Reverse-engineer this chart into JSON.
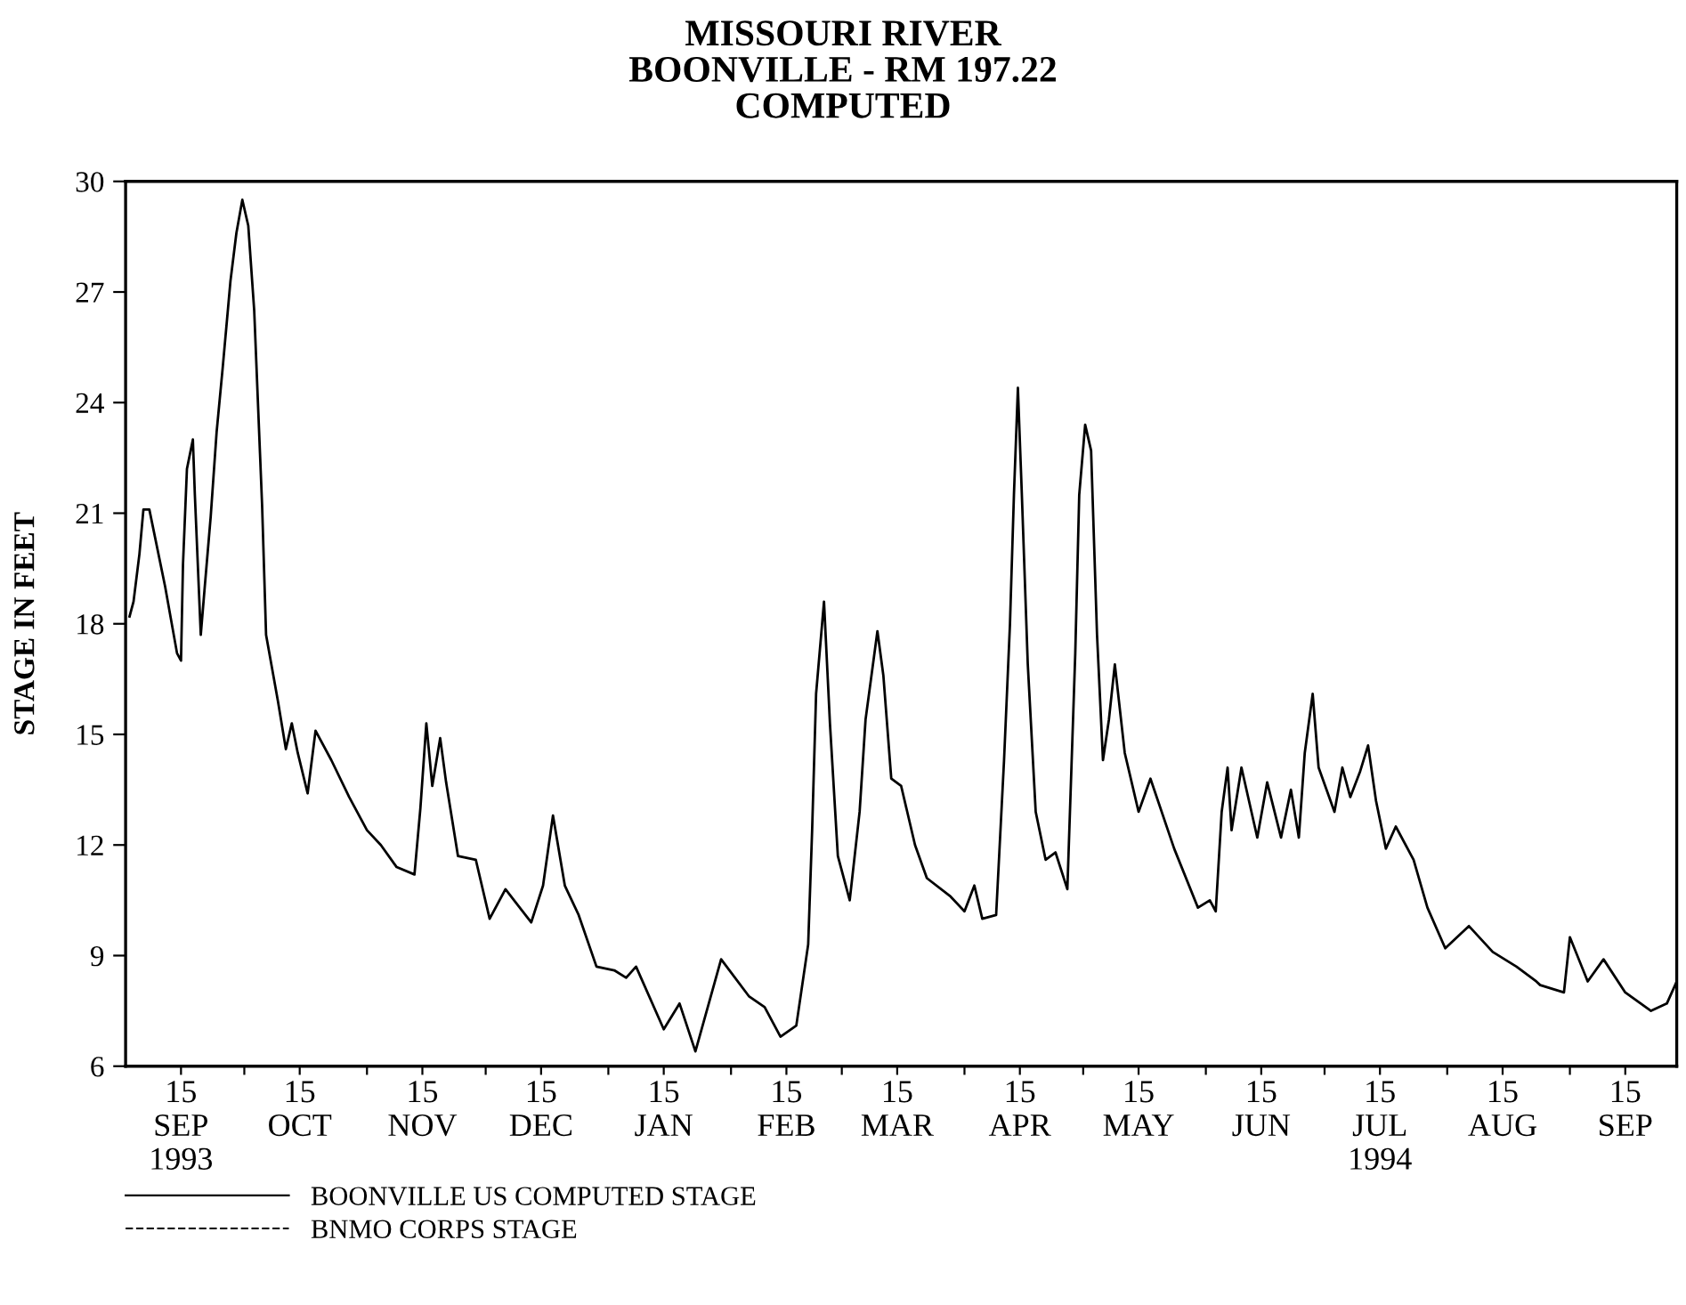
{
  "chart_data": {
    "type": "line",
    "title": "MISSOURI RIVER\nBOONVILLE - RM 197.22\nCOMPUTED",
    "ylabel": "STAGE IN FEET",
    "x": [
      "1993-09-02",
      "1993-09-03",
      "1993-09-04T12:00",
      "1993-09-05T12:00",
      "1993-09-07",
      "1993-09-11",
      "1993-09-14",
      "1993-09-15",
      "1993-09-15T12:00",
      "1993-09-16T12:00",
      "1993-09-18",
      "1993-09-18T12:00",
      "1993-09-20",
      "1993-09-21",
      "1993-09-22T12:00",
      "1993-09-24",
      "1993-09-25T12:00",
      "1993-09-27T12:00",
      "1993-09-29",
      "1993-09-30T12:00",
      "1993-10-02",
      "1993-10-03T12:00",
      "1993-10-05T12:00",
      "1993-10-06T12:00",
      "1993-10-09T12:00",
      "1993-10-11T12:00",
      "1993-10-13",
      "1993-10-14T12:00",
      "1993-10-17",
      "1993-10-19",
      "1993-10-23",
      "1993-10-27T12:00",
      "1993-11-01",
      "1993-11-04T12:00",
      "1993-11-08T12:00",
      "1993-11-13",
      "1993-11-14T12:00",
      "1993-11-16",
      "1993-11-17T12:00",
      "1993-11-19T12:00",
      "1993-11-21",
      "1993-11-24",
      "1993-11-28T12:00",
      "1993-12-02",
      "1993-12-06",
      "1993-12-12T12:00",
      "1993-12-15T12:00",
      "1993-12-18",
      "1993-12-21",
      "1993-12-24T12:00",
      "1993-12-29",
      "1994-01-02T12:00",
      "1994-01-05T12:00",
      "1994-01-08",
      "1994-01-15",
      "1994-01-19",
      "1994-01-23",
      "1994-01-29T12:00",
      "1994-02-05T12:00",
      "1994-02-09T12:00",
      "1994-02-13T12:00",
      "1994-02-17T12:00",
      "1994-02-20T12:00",
      "1994-02-21T12:00",
      "1994-02-22T12:00",
      "1994-02-24T12:00",
      "1994-02-26",
      "1994-02-28",
      "1994-03-03",
      "1994-03-05T12:00",
      "1994-03-07",
      "1994-03-10",
      "1994-03-11T12:00",
      "1994-03-13T12:00",
      "1994-03-16",
      "1994-03-19T12:00",
      "1994-03-22T12:00",
      "1994-03-28T12:00",
      "1994-04-01",
      "1994-04-03T12:00",
      "1994-04-05T12:00",
      "1994-04-09",
      "1994-04-11",
      "1994-04-12T12:00",
      "1994-04-13T12:00",
      "1994-04-14T12:00",
      "1994-04-15T12:00",
      "1994-04-17",
      "1994-04-19",
      "1994-04-21T12:00",
      "1994-04-24",
      "1994-04-27",
      "1994-04-29",
      "1994-04-30",
      "1994-05-01T12:00",
      "1994-05-03",
      "1994-05-04T12:00",
      "1994-05-06",
      "1994-05-07T12:00",
      "1994-05-09",
      "1994-05-11T12:00",
      "1994-05-15",
      "1994-05-18",
      "1994-05-24",
      "1994-05-30",
      "1994-06-02",
      "1994-06-03T12:00",
      "1994-06-05",
      "1994-06-06T12:00",
      "1994-06-07T12:00",
      "1994-06-10",
      "1994-06-14",
      "1994-06-16T12:00",
      "1994-06-20",
      "1994-06-22T12:00",
      "1994-06-24T12:00",
      "1994-06-26",
      "1994-06-28",
      "1994-06-29T12:00",
      "1994-07-03T12:00",
      "1994-07-05T12:00",
      "1994-07-07T12:00",
      "1994-07-10",
      "1994-07-12",
      "1994-07-14",
      "1994-07-16T12:00",
      "1994-07-19",
      "1994-07-23T12:00",
      "1994-07-27",
      "1994-07-31T12:00",
      "1994-08-06T12:00",
      "1994-08-12T12:00",
      "1994-08-18T12:00",
      "1994-08-23T12:00",
      "1994-08-24T12:00",
      "1994-08-30T12:00",
      "1994-09-01",
      "1994-09-05T12:00",
      "1994-09-09T12:00",
      "1994-09-15",
      "1994-09-21T12:00",
      "1994-09-25T12:00",
      "1994-09-28"
    ],
    "series": [
      {
        "name": "BOONVILLE US COMPUTED STAGE",
        "color": "#000000",
        "line_style": "solid",
        "values": [
          18.2,
          18.6,
          19.9,
          21.1,
          21.1,
          19.0,
          17.2,
          17.0,
          19.6,
          22.2,
          23.0,
          21.5,
          17.7,
          19.0,
          20.9,
          23.2,
          24.9,
          27.3,
          28.6,
          29.5,
          28.8,
          26.5,
          21.2,
          17.7,
          15.9,
          14.6,
          15.3,
          14.5,
          13.4,
          15.1,
          14.3,
          13.3,
          12.4,
          12.0,
          11.4,
          11.2,
          13.0,
          15.3,
          13.6,
          14.9,
          13.7,
          11.7,
          11.6,
          10.0,
          10.8,
          9.9,
          10.9,
          12.8,
          10.9,
          10.1,
          8.7,
          8.6,
          8.4,
          8.7,
          7.0,
          7.7,
          6.4,
          8.9,
          7.9,
          7.6,
          6.8,
          7.1,
          9.3,
          12.4,
          16.1,
          18.6,
          15.3,
          11.7,
          10.5,
          12.9,
          15.4,
          17.8,
          16.6,
          13.8,
          13.6,
          12.0,
          11.1,
          10.6,
          10.2,
          10.9,
          10.0,
          10.1,
          14.3,
          18.0,
          21.5,
          24.4,
          21.5,
          16.9,
          12.9,
          11.6,
          11.8,
          10.8,
          17.2,
          21.5,
          23.4,
          22.7,
          17.7,
          14.3,
          15.4,
          16.9,
          14.5,
          12.9,
          13.8,
          11.9,
          10.3,
          10.5,
          10.2,
          12.9,
          14.1,
          12.4,
          14.1,
          12.2,
          13.7,
          12.2,
          13.5,
          12.2,
          14.5,
          16.1,
          14.1,
          12.9,
          14.1,
          13.3,
          14.0,
          14.7,
          13.2,
          11.9,
          12.5,
          11.6,
          10.3,
          9.2,
          9.8,
          9.1,
          8.7,
          8.3,
          8.2,
          8.0,
          9.5,
          8.3,
          8.9,
          8.0,
          7.5,
          7.7,
          8.3
        ]
      },
      {
        "name": "BNMO CORPS STAGE",
        "color": "#000000",
        "line_style": "dashed",
        "values": [
          null,
          null,
          null,
          null,
          null,
          null,
          null,
          null,
          null,
          null,
          null,
          null,
          null,
          null,
          null,
          null,
          null,
          null,
          null,
          null,
          null,
          null,
          null,
          null,
          null,
          null,
          null,
          null,
          null,
          null,
          null,
          null,
          null,
          null,
          null,
          null,
          null,
          null,
          null,
          null,
          null,
          null,
          null,
          null,
          null,
          null,
          null,
          null,
          null,
          null,
          null,
          null,
          null,
          null,
          null,
          null,
          null,
          null,
          null,
          null,
          null,
          null,
          null,
          null,
          null,
          null,
          null,
          null,
          null,
          null,
          null,
          null,
          null,
          null,
          null,
          null,
          null,
          null,
          null,
          null,
          null,
          null,
          null,
          null,
          null,
          null,
          null,
          null,
          null,
          null,
          null,
          null,
          null,
          null,
          null,
          null,
          null,
          null,
          null,
          null,
          null,
          null,
          null,
          null,
          null,
          null,
          null,
          null,
          null,
          null,
          null,
          null,
          null,
          null,
          null,
          null,
          null,
          null,
          null,
          null,
          null,
          null,
          null,
          null,
          null,
          null,
          null,
          null,
          null,
          null,
          null,
          null,
          null,
          null,
          null,
          null,
          null,
          null,
          null,
          null,
          null,
          null,
          null
        ]
      }
    ],
    "xlim": [
      "1993-09-01",
      "1994-09-28"
    ],
    "xticks": [
      {
        "value": "1993-09-15",
        "label": "15\nSEP\n1993"
      },
      {
        "value": "1993-10-01",
        "label": null
      },
      {
        "value": "1993-10-15",
        "label": "15\nOCT"
      },
      {
        "value": "1993-11-01",
        "label": null
      },
      {
        "value": "1993-11-15",
        "label": "15\nNOV"
      },
      {
        "value": "1993-12-01",
        "label": null
      },
      {
        "value": "1993-12-15",
        "label": "15\nDEC"
      },
      {
        "value": "1994-01-01",
        "label": null
      },
      {
        "value": "1994-01-15",
        "label": "15\nJAN"
      },
      {
        "value": "1994-02-01",
        "label": null
      },
      {
        "value": "1994-02-15",
        "label": "15\nFEB"
      },
      {
        "value": "1994-03-01",
        "label": null
      },
      {
        "value": "1994-03-15",
        "label": "15\nMAR"
      },
      {
        "value": "1994-04-01",
        "label": null
      },
      {
        "value": "1994-04-15",
        "label": "15\nAPR"
      },
      {
        "value": "1994-05-01",
        "label": null
      },
      {
        "value": "1994-05-15",
        "label": "15\nMAY"
      },
      {
        "value": "1994-06-01",
        "label": null
      },
      {
        "value": "1994-06-15",
        "label": "15\nJUN"
      },
      {
        "value": "1994-07-01",
        "label": null
      },
      {
        "value": "1994-07-15",
        "label": "15\nJUL\n1994"
      },
      {
        "value": "1994-08-01",
        "label": null
      },
      {
        "value": "1994-08-15",
        "label": "15\nAUG"
      },
      {
        "value": "1994-09-01",
        "label": null
      },
      {
        "value": "1994-09-15",
        "label": "15\nSEP"
      }
    ],
    "ylim": [
      6,
      30
    ],
    "yticks": [
      6,
      9,
      12,
      15,
      18,
      21,
      24,
      27,
      30
    ],
    "grid": false,
    "legend": "bottom left",
    "marker": "none"
  }
}
